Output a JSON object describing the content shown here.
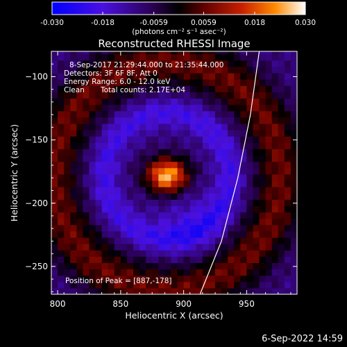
{
  "chart_data": {
    "type": "heatmap",
    "title": "Reconstructed RHESSI Image",
    "xlabel": "Heliocentric X (arcsec)",
    "ylabel": "Heliocentric Y (arcsec)",
    "xlim": [
      795,
      990
    ],
    "ylim": [
      -272,
      -80
    ],
    "xticks": [
      800,
      850,
      900,
      950
    ],
    "yticks": [
      -100,
      -150,
      -200,
      -250
    ],
    "colorbar": {
      "range": [
        -0.03,
        0.03
      ],
      "ticks": [
        "-0.030",
        "-0.018",
        "-0.0059",
        "0.0059",
        "0.018",
        "0.030"
      ],
      "tick_values": [
        -0.03,
        -0.018,
        -0.0059,
        0.0059,
        0.018,
        0.03
      ],
      "unit_label": "(photons cm⁻² s⁻¹ asec⁻²)",
      "colormap": [
        "#0000ff",
        "#5a00c0",
        "#000000",
        "#600000",
        "#c02000",
        "#ff8000",
        "#ffffff"
      ]
    },
    "peak": {
      "x": 887,
      "y": -178,
      "value": 0.03
    },
    "limb_curve": [
      [
        913,
        -272
      ],
      [
        930,
        -230
      ],
      [
        943,
        -180
      ],
      [
        953,
        -130
      ],
      [
        960,
        -80
      ]
    ],
    "grid": false,
    "annotations": {
      "time_range": "8-Sep-2017 21:29:44.000 to 21:35:44.000",
      "detectors": "Detectors: 3F 6F 8F, Att 0",
      "energy": "Energy Range: 6.0 - 12.0 keV",
      "method": "Clean",
      "counts": "Total counts: 2.17E+04",
      "peak_text": "Position of Peak = [887,-178]"
    }
  },
  "footer": {
    "timestamp": "6-Sep-2022 14:59"
  }
}
